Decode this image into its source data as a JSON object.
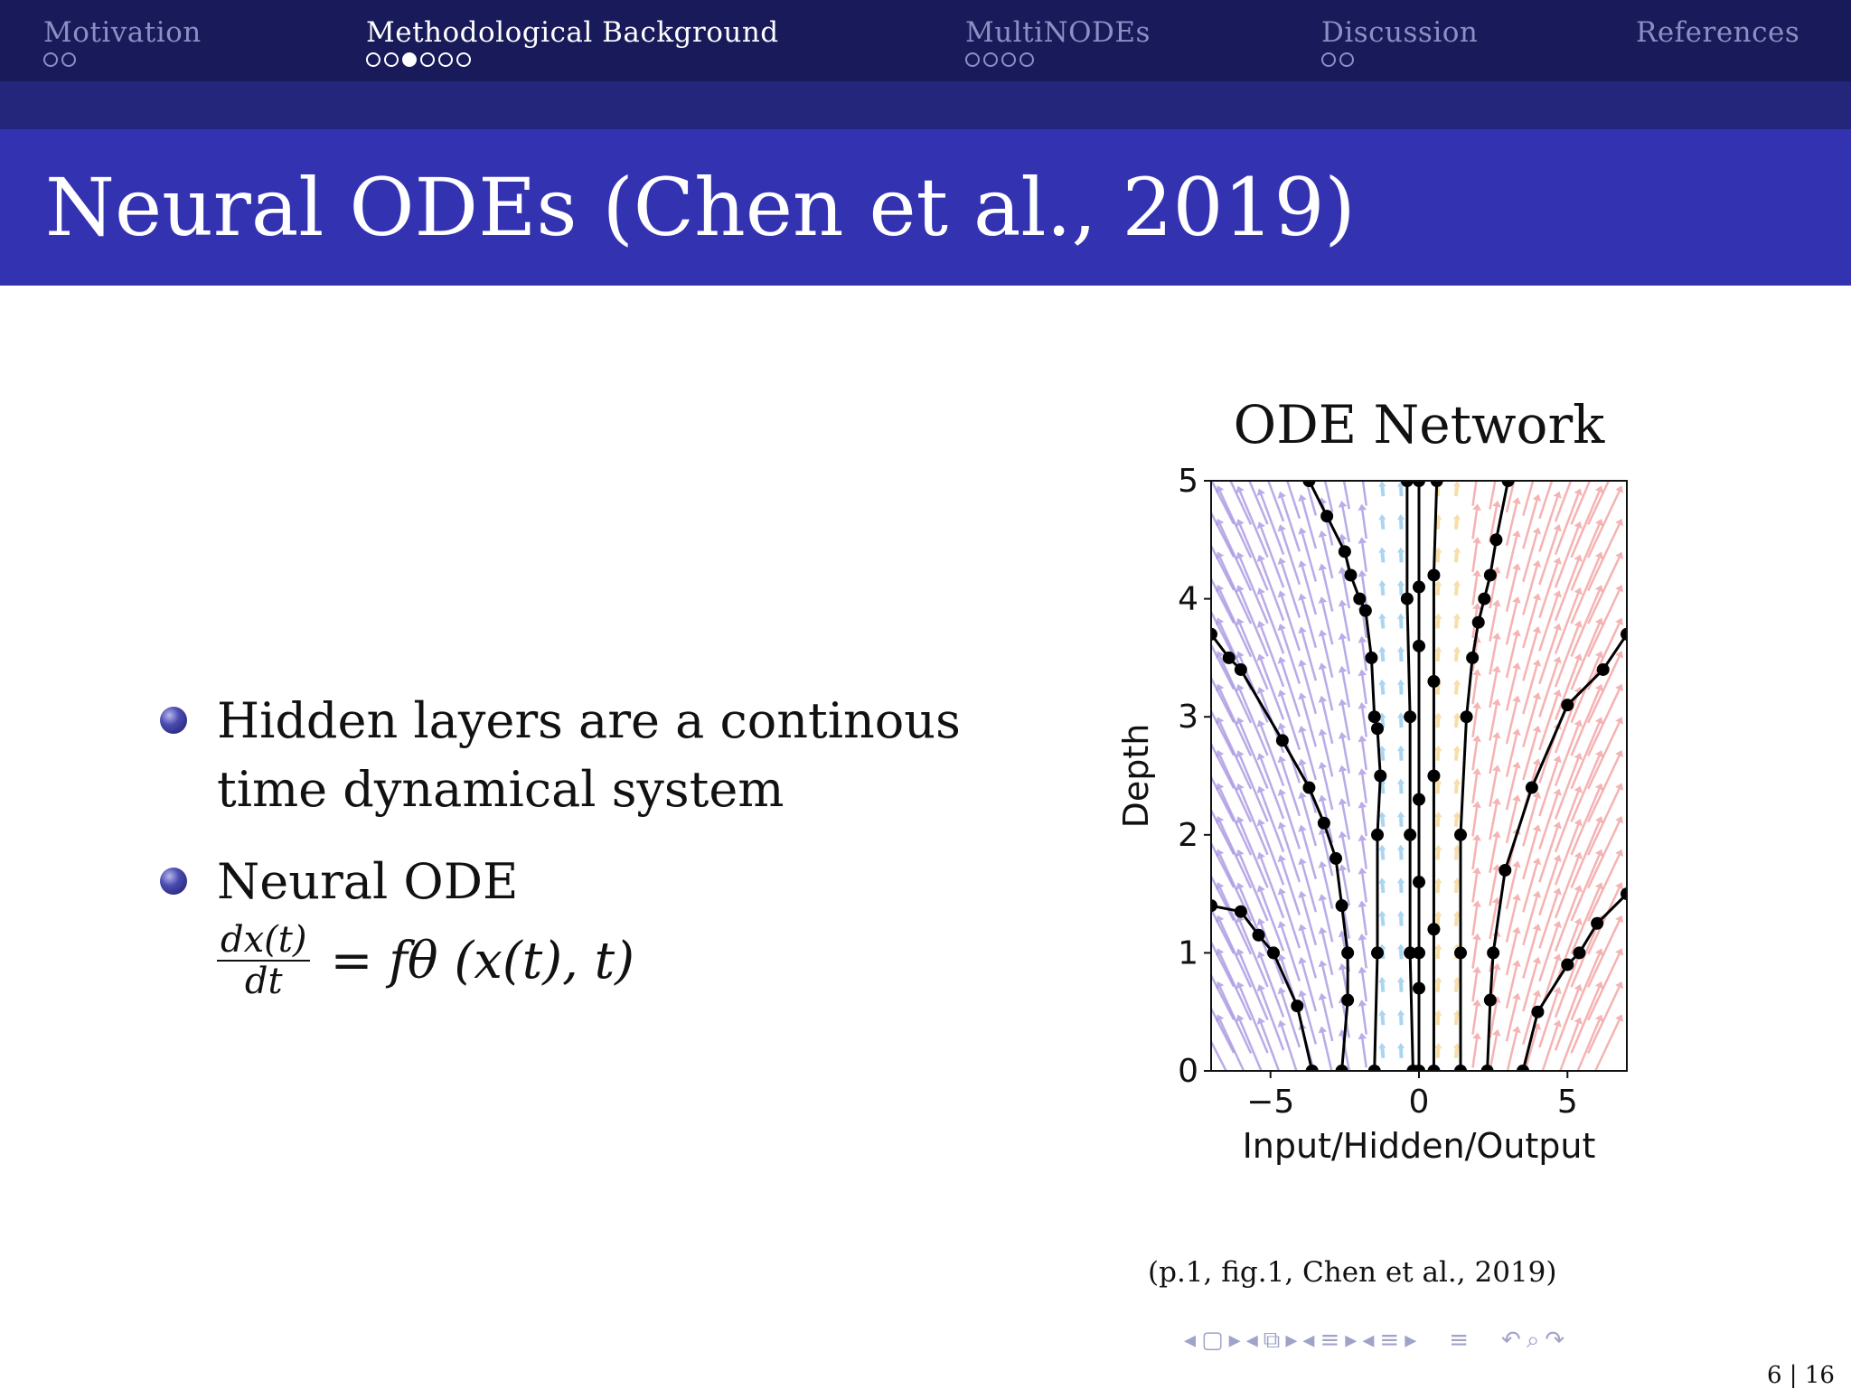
{
  "nav": {
    "sections": [
      {
        "label": "Motivation",
        "dots": 2,
        "active": false,
        "current": -1
      },
      {
        "label": "Methodological Background",
        "dots": 6,
        "active": true,
        "current": 2
      },
      {
        "label": "MultiNODEs",
        "dots": 4,
        "active": false,
        "current": -1
      },
      {
        "label": "Discussion",
        "dots": 2,
        "active": false,
        "current": -1
      },
      {
        "label": "References",
        "dots": 0,
        "active": false,
        "current": -1
      }
    ]
  },
  "slide": {
    "title": "Neural ODEs (Chen et al., 2019)",
    "bullets": [
      {
        "text": "Hidden layers are a continous time dynamical system"
      },
      {
        "text": "Neural ODE"
      }
    ],
    "equation": {
      "numerator": "dx(t)",
      "denominator": "dt",
      "rhs": "= fθ (x(t), t)"
    },
    "caption": "(p.1, fig.1, Chen et al., 2019)"
  },
  "chart_data": {
    "type": "line",
    "title": "ODE Network",
    "xlabel": "Input/Hidden/Output",
    "ylabel": "Depth",
    "xlim": [
      -7,
      7
    ],
    "ylim": [
      0,
      5
    ],
    "xticks": [
      "−5",
      "0",
      "5"
    ],
    "xtick_values": [
      -5,
      0,
      5
    ],
    "yticks": [
      "0",
      "1",
      "2",
      "3",
      "4",
      "5"
    ],
    "ytick_values": [
      0,
      1,
      2,
      3,
      4,
      5
    ],
    "colors": {
      "left_field": "#a48fe0",
      "center_left_field": "#8ec7ec",
      "center_right_field": "#f5d38a",
      "right_field": "#f29a9a",
      "trajectory": "#000000"
    },
    "trajectories": [
      {
        "points": [
          [
            -7.0,
            1.4
          ],
          [
            -6.0,
            1.35
          ],
          [
            -5.4,
            1.15
          ],
          [
            -4.9,
            1.0
          ],
          [
            -4.1,
            0.55
          ],
          [
            -3.6,
            0.0
          ]
        ]
      },
      {
        "points": [
          [
            -7.0,
            3.7
          ],
          [
            -6.4,
            3.5
          ],
          [
            -6.0,
            3.4
          ],
          [
            -4.6,
            2.8
          ],
          [
            -3.7,
            2.4
          ],
          [
            -3.2,
            2.1
          ],
          [
            -2.8,
            1.8
          ],
          [
            -2.6,
            1.4
          ],
          [
            -2.4,
            1.0
          ],
          [
            -2.4,
            0.6
          ],
          [
            -2.6,
            0.0
          ]
        ]
      },
      {
        "points": [
          [
            -3.7,
            5.0
          ],
          [
            -3.1,
            4.7
          ],
          [
            -2.5,
            4.4
          ],
          [
            -2.3,
            4.2
          ],
          [
            -2.0,
            4.0
          ],
          [
            -1.8,
            3.9
          ],
          [
            -1.6,
            3.5
          ],
          [
            -1.5,
            3.0
          ],
          [
            -1.4,
            2.9
          ],
          [
            -1.3,
            2.5
          ],
          [
            -1.4,
            2.0
          ],
          [
            -1.4,
            1.0
          ],
          [
            -1.5,
            0.0
          ]
        ]
      },
      {
        "points": [
          [
            -0.4,
            5.0
          ],
          [
            -0.4,
            4.0
          ],
          [
            -0.3,
            3.0
          ],
          [
            -0.3,
            2.0
          ],
          [
            -0.3,
            1.0
          ],
          [
            -0.2,
            0.0
          ]
        ]
      },
      {
        "points": [
          [
            0.0,
            5.0
          ],
          [
            0.0,
            4.1
          ],
          [
            0.0,
            3.6
          ],
          [
            0.0,
            2.3
          ],
          [
            0.0,
            1.6
          ],
          [
            0.0,
            1.0
          ],
          [
            0.0,
            0.7
          ],
          [
            0.0,
            0.0
          ]
        ]
      },
      {
        "points": [
          [
            0.6,
            5.0
          ],
          [
            0.5,
            4.2
          ],
          [
            0.5,
            3.3
          ],
          [
            0.5,
            2.5
          ],
          [
            0.5,
            1.2
          ],
          [
            0.5,
            0.0
          ]
        ]
      },
      {
        "points": [
          [
            3.0,
            5.0
          ],
          [
            2.6,
            4.5
          ],
          [
            2.4,
            4.2
          ],
          [
            2.2,
            4.0
          ],
          [
            2.0,
            3.8
          ],
          [
            1.8,
            3.5
          ],
          [
            1.6,
            3.0
          ],
          [
            1.4,
            2.0
          ],
          [
            1.4,
            1.0
          ],
          [
            1.4,
            0.0
          ]
        ]
      },
      {
        "points": [
          [
            7.0,
            3.7
          ],
          [
            6.2,
            3.4
          ],
          [
            5.0,
            3.1
          ],
          [
            3.8,
            2.4
          ],
          [
            2.9,
            1.7
          ],
          [
            2.5,
            1.0
          ],
          [
            2.4,
            0.6
          ],
          [
            2.3,
            0.0
          ]
        ]
      },
      {
        "points": [
          [
            7.0,
            1.5
          ],
          [
            6.0,
            1.25
          ],
          [
            5.4,
            1.0
          ],
          [
            5.0,
            0.9
          ],
          [
            4.0,
            0.5
          ],
          [
            3.5,
            0.0
          ]
        ]
      }
    ]
  },
  "controls": {
    "icons": [
      "◂",
      "▢",
      "▸",
      "◂",
      "⧉",
      "▸",
      "◂",
      "≡",
      "▸",
      "◂",
      "≡",
      "▸",
      "≡",
      "↶",
      "⌕",
      "↷"
    ]
  },
  "page": "6 | 16"
}
